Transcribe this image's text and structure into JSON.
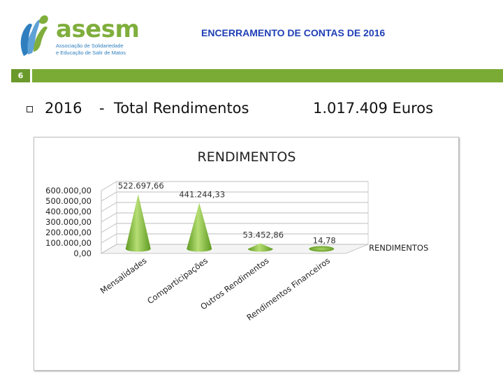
{
  "header": {
    "logo_word": "asesm",
    "logo_line1": "Associação de Solidariedade",
    "logo_line2": "e Educação de Salir de Matos",
    "title": "ENCERRAMENTO DE CONTAS DE 2016",
    "slide_number": "6"
  },
  "summary": {
    "year": "2016",
    "separator": "-",
    "label": "Total Rendimentos",
    "total": "1.017.409 Euros"
  },
  "colors": {
    "brand_green": "#7aab35",
    "title_blue": "#1f3fb5",
    "cone_green": "#8cc63f"
  },
  "chart_data": {
    "type": "bar",
    "shape": "3d-cone",
    "title": "RENDIMENTOS",
    "categories": [
      "Mensalidades",
      "Comparticipações",
      "Outros Rendimentos",
      "Rendimentos Financeiros"
    ],
    "series": [
      {
        "name": "RENDIMENTOS",
        "values": [
          522697.66,
          441244.33,
          53452.86,
          14.78
        ]
      }
    ],
    "data_labels": [
      "522.697,66",
      "441.244,33",
      "53.452,86",
      "14,78"
    ],
    "y_ticks": [
      "0,00",
      "100.000,00",
      "200.000,00",
      "300.000,00",
      "400.000,00",
      "500.000,00",
      "600.000,00"
    ],
    "ylim": [
      0,
      600000
    ],
    "grid": true,
    "legend_position": "right"
  }
}
